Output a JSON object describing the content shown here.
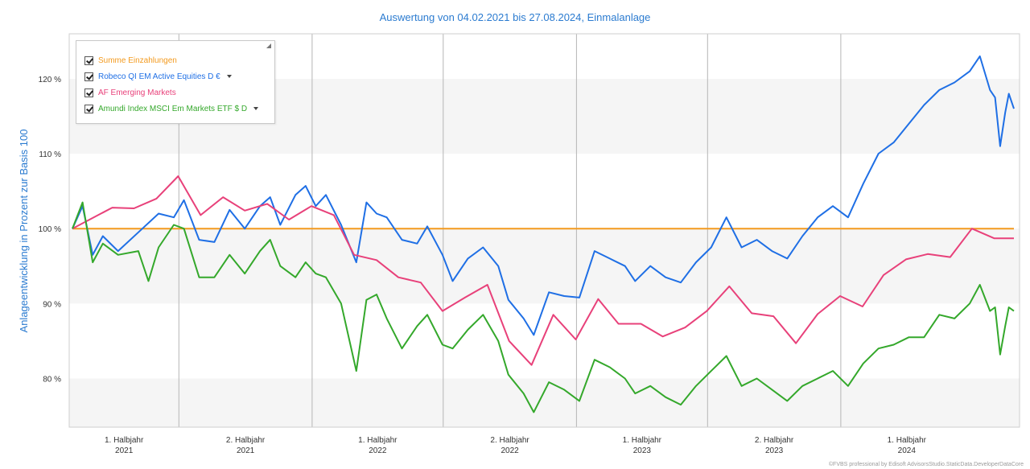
{
  "chart_data": {
    "type": "line",
    "title": "Auswertung von 04.02.2021 bis 27.08.2024, Einmalanlage",
    "ylabel": "Anlageentwicklung  in Prozent zur Basis 100",
    "ylim": [
      73.5,
      126
    ],
    "x_start": "2021-02-04",
    "x_end": "2024-08-27",
    "yticks": [
      {
        "v": 80,
        "label": "80 %"
      },
      {
        "v": 90,
        "label": "90 %"
      },
      {
        "v": 100,
        "label": "100 %"
      },
      {
        "v": 110,
        "label": "110 %"
      },
      {
        "v": 120,
        "label": "120 %"
      }
    ],
    "xticks": [
      {
        "line1": "1. Halbjahr",
        "line2": "2021",
        "start": "2021-01-01",
        "end": "2021-07-01"
      },
      {
        "line1": "2. Halbjahr",
        "line2": "2021",
        "start": "2021-07-01",
        "end": "2022-01-01"
      },
      {
        "line1": "1. Halbjahr",
        "line2": "2022",
        "start": "2022-01-01",
        "end": "2022-07-01"
      },
      {
        "line1": "2. Halbjahr",
        "line2": "2022",
        "start": "2022-07-01",
        "end": "2023-01-01"
      },
      {
        "line1": "1. Halbjahr",
        "line2": "2023",
        "start": "2023-01-01",
        "end": "2023-07-01"
      },
      {
        "line1": "2. Halbjahr",
        "line2": "2023",
        "start": "2023-07-01",
        "end": "2024-01-01"
      },
      {
        "line1": "1. Halbjahr",
        "line2": "2024",
        "start": "2024-01-01",
        "end": "2024-07-01"
      }
    ],
    "grid": true,
    "legend_position": "top-left",
    "series": [
      {
        "name": "Summe Einzahlungen",
        "color": "#f39a1e",
        "dropdown": false,
        "points": [
          [
            "2021-02-04",
            100
          ],
          [
            "2024-08-27",
            100
          ]
        ]
      },
      {
        "name": "Robeco QI EM Active Equities D €",
        "color": "#1f6fe5",
        "dropdown": true,
        "points": [
          [
            "2021-02-04",
            100
          ],
          [
            "2021-02-18",
            103
          ],
          [
            "2021-03-04",
            96.5
          ],
          [
            "2021-03-18",
            99
          ],
          [
            "2021-04-08",
            97
          ],
          [
            "2021-05-06",
            99.5
          ],
          [
            "2021-06-03",
            102
          ],
          [
            "2021-06-24",
            101.5
          ],
          [
            "2021-07-08",
            103.8
          ],
          [
            "2021-07-29",
            98.5
          ],
          [
            "2021-08-19",
            98.2
          ],
          [
            "2021-09-09",
            102.5
          ],
          [
            "2021-09-30",
            100
          ],
          [
            "2021-10-21",
            103
          ],
          [
            "2021-11-04",
            104.2
          ],
          [
            "2021-11-18",
            100.5
          ],
          [
            "2021-12-09",
            104.5
          ],
          [
            "2021-12-23",
            105.7
          ],
          [
            "2022-01-06",
            103
          ],
          [
            "2022-01-20",
            104.5
          ],
          [
            "2022-02-10",
            100.5
          ],
          [
            "2022-03-03",
            95.5
          ],
          [
            "2022-03-17",
            103.5
          ],
          [
            "2022-03-31",
            102
          ],
          [
            "2022-04-14",
            101.5
          ],
          [
            "2022-05-05",
            98.5
          ],
          [
            "2022-05-26",
            98
          ],
          [
            "2022-06-09",
            100.3
          ],
          [
            "2022-06-30",
            96.5
          ],
          [
            "2022-07-14",
            93
          ],
          [
            "2022-08-04",
            96
          ],
          [
            "2022-08-25",
            97.5
          ],
          [
            "2022-09-15",
            95
          ],
          [
            "2022-09-29",
            90.5
          ],
          [
            "2022-10-20",
            88
          ],
          [
            "2022-11-03",
            85.8
          ],
          [
            "2022-11-24",
            91.5
          ],
          [
            "2022-12-15",
            91
          ],
          [
            "2023-01-05",
            90.8
          ],
          [
            "2023-01-26",
            97
          ],
          [
            "2023-02-16",
            96
          ],
          [
            "2023-03-09",
            95
          ],
          [
            "2023-03-23",
            93
          ],
          [
            "2023-04-13",
            95
          ],
          [
            "2023-05-04",
            93.5
          ],
          [
            "2023-05-25",
            92.8
          ],
          [
            "2023-06-15",
            95.5
          ],
          [
            "2023-07-06",
            97.5
          ],
          [
            "2023-07-27",
            101.5
          ],
          [
            "2023-08-17",
            97.5
          ],
          [
            "2023-09-07",
            98.5
          ],
          [
            "2023-09-28",
            97
          ],
          [
            "2023-10-19",
            96
          ],
          [
            "2023-11-09",
            99
          ],
          [
            "2023-11-30",
            101.5
          ],
          [
            "2023-12-21",
            103
          ],
          [
            "2024-01-11",
            101.5
          ],
          [
            "2024-02-01",
            106
          ],
          [
            "2024-02-22",
            110
          ],
          [
            "2024-03-14",
            111.5
          ],
          [
            "2024-04-04",
            114
          ],
          [
            "2024-04-25",
            116.5
          ],
          [
            "2024-05-16",
            118.5
          ],
          [
            "2024-06-06",
            119.5
          ],
          [
            "2024-06-27",
            121
          ],
          [
            "2024-07-11",
            123
          ],
          [
            "2024-07-25",
            118.5
          ],
          [
            "2024-08-01",
            117.5
          ],
          [
            "2024-08-08",
            111
          ],
          [
            "2024-08-15",
            115.5
          ],
          [
            "2024-08-20",
            118
          ],
          [
            "2024-08-27",
            116
          ]
        ]
      },
      {
        "name": "AF Emerging Markets",
        "color": "#e8417a",
        "dropdown": false,
        "points": [
          [
            "2021-02-04",
            100
          ],
          [
            "2021-03-31",
            102.8
          ],
          [
            "2021-04-30",
            102.7
          ],
          [
            "2021-05-31",
            104
          ],
          [
            "2021-06-30",
            107
          ],
          [
            "2021-07-31",
            101.8
          ],
          [
            "2021-08-31",
            104.2
          ],
          [
            "2021-09-30",
            102.4
          ],
          [
            "2021-10-31",
            103.3
          ],
          [
            "2021-11-30",
            101.2
          ],
          [
            "2021-12-31",
            103
          ],
          [
            "2022-01-31",
            101.8
          ],
          [
            "2022-02-28",
            96.5
          ],
          [
            "2022-03-31",
            95.8
          ],
          [
            "2022-04-30",
            93.5
          ],
          [
            "2022-05-31",
            92.8
          ],
          [
            "2022-06-30",
            89
          ],
          [
            "2022-07-31",
            90.8
          ],
          [
            "2022-08-31",
            92.5
          ],
          [
            "2022-09-30",
            85
          ],
          [
            "2022-10-31",
            81.8
          ],
          [
            "2022-11-30",
            88.5
          ],
          [
            "2022-12-31",
            85.2
          ],
          [
            "2023-01-31",
            90.6
          ],
          [
            "2023-02-28",
            87.3
          ],
          [
            "2023-03-31",
            87.3
          ],
          [
            "2023-04-30",
            85.6
          ],
          [
            "2023-05-31",
            86.8
          ],
          [
            "2023-06-30",
            89
          ],
          [
            "2023-07-31",
            92.3
          ],
          [
            "2023-08-31",
            88.7
          ],
          [
            "2023-09-30",
            88.3
          ],
          [
            "2023-10-31",
            84.7
          ],
          [
            "2023-11-30",
            88.6
          ],
          [
            "2023-12-31",
            91
          ],
          [
            "2024-01-31",
            89.6
          ],
          [
            "2024-02-29",
            93.8
          ],
          [
            "2024-03-31",
            95.9
          ],
          [
            "2024-04-30",
            96.6
          ],
          [
            "2024-05-31",
            96.2
          ],
          [
            "2024-06-30",
            100
          ],
          [
            "2024-07-31",
            98.7
          ],
          [
            "2024-08-27",
            98.7
          ]
        ]
      },
      {
        "name": "Amundi Index MSCI Em Markets ETF $ D",
        "color": "#34a82b",
        "dropdown": true,
        "points": [
          [
            "2021-02-04",
            100
          ],
          [
            "2021-02-18",
            103.5
          ],
          [
            "2021-03-04",
            95.5
          ],
          [
            "2021-03-18",
            98
          ],
          [
            "2021-04-08",
            96.5
          ],
          [
            "2021-05-06",
            97
          ],
          [
            "2021-05-20",
            93
          ],
          [
            "2021-06-03",
            97.5
          ],
          [
            "2021-06-24",
            100.5
          ],
          [
            "2021-07-08",
            100
          ],
          [
            "2021-07-29",
            93.5
          ],
          [
            "2021-08-19",
            93.5
          ],
          [
            "2021-09-09",
            96.5
          ],
          [
            "2021-09-30",
            94
          ],
          [
            "2021-10-21",
            97
          ],
          [
            "2021-11-04",
            98.5
          ],
          [
            "2021-11-18",
            95
          ],
          [
            "2021-12-09",
            93.5
          ],
          [
            "2021-12-23",
            95.5
          ],
          [
            "2022-01-06",
            94
          ],
          [
            "2022-01-20",
            93.5
          ],
          [
            "2022-02-10",
            90
          ],
          [
            "2022-03-03",
            81
          ],
          [
            "2022-03-17",
            90.5
          ],
          [
            "2022-03-31",
            91.2
          ],
          [
            "2022-04-14",
            88
          ],
          [
            "2022-05-05",
            84
          ],
          [
            "2022-05-26",
            87
          ],
          [
            "2022-06-09",
            88.5
          ],
          [
            "2022-06-30",
            84.5
          ],
          [
            "2022-07-14",
            84
          ],
          [
            "2022-08-04",
            86.5
          ],
          [
            "2022-08-25",
            88.5
          ],
          [
            "2022-09-15",
            85
          ],
          [
            "2022-09-29",
            80.5
          ],
          [
            "2022-10-20",
            78
          ],
          [
            "2022-11-03",
            75.5
          ],
          [
            "2022-11-24",
            79.5
          ],
          [
            "2022-12-15",
            78.5
          ],
          [
            "2023-01-05",
            77
          ],
          [
            "2023-01-26",
            82.5
          ],
          [
            "2023-02-16",
            81.5
          ],
          [
            "2023-03-09",
            80
          ],
          [
            "2023-03-23",
            78
          ],
          [
            "2023-04-13",
            79
          ],
          [
            "2023-05-04",
            77.5
          ],
          [
            "2023-05-25",
            76.5
          ],
          [
            "2023-06-15",
            79
          ],
          [
            "2023-07-06",
            81
          ],
          [
            "2023-07-27",
            83
          ],
          [
            "2023-08-17",
            79
          ],
          [
            "2023-09-07",
            80
          ],
          [
            "2023-09-28",
            78.5
          ],
          [
            "2023-10-19",
            77
          ],
          [
            "2023-11-09",
            79
          ],
          [
            "2023-11-30",
            80
          ],
          [
            "2023-12-21",
            81
          ],
          [
            "2024-01-11",
            79
          ],
          [
            "2024-02-01",
            82
          ],
          [
            "2024-02-22",
            84
          ],
          [
            "2024-03-14",
            84.5
          ],
          [
            "2024-04-04",
            85.5
          ],
          [
            "2024-04-25",
            85.5
          ],
          [
            "2024-05-16",
            88.5
          ],
          [
            "2024-06-06",
            88
          ],
          [
            "2024-06-27",
            90
          ],
          [
            "2024-07-11",
            92.5
          ],
          [
            "2024-07-25",
            89
          ],
          [
            "2024-08-01",
            89.5
          ],
          [
            "2024-08-08",
            83.2
          ],
          [
            "2024-08-15",
            87
          ],
          [
            "2024-08-20",
            89.5
          ],
          [
            "2024-08-27",
            89
          ]
        ]
      }
    ]
  },
  "credit": "©FVBS professional by Edisoft AdvisorsStudio.StaticData.DeveloperDataCore"
}
